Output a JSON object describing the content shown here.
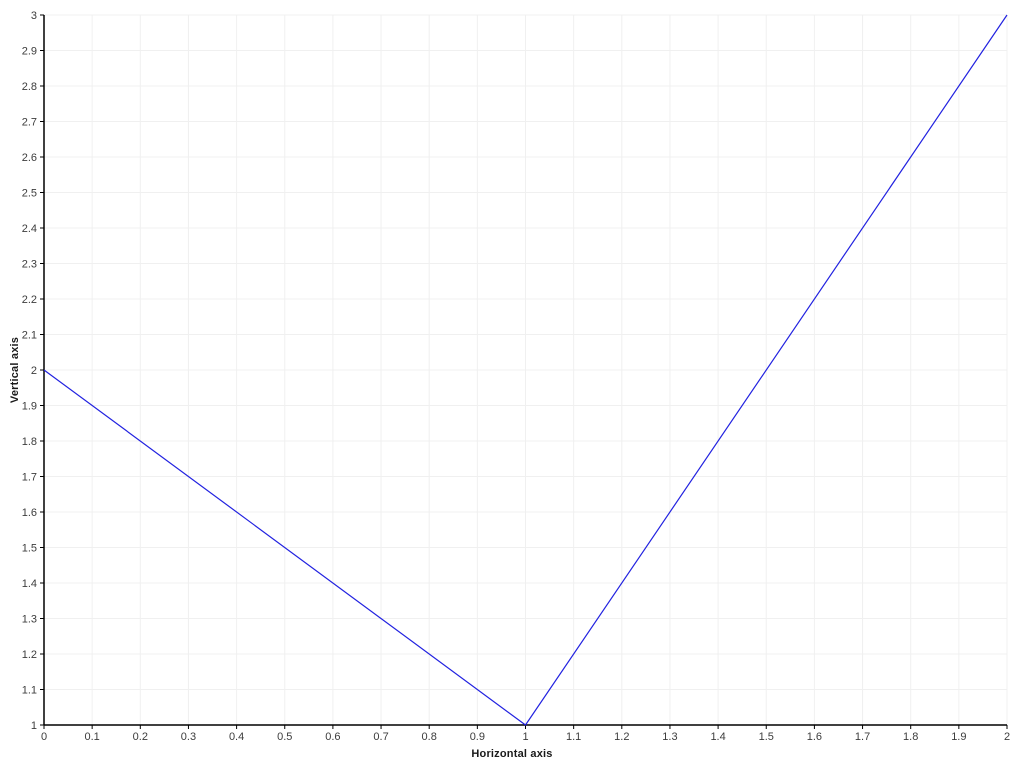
{
  "chart_data": {
    "type": "line",
    "title": "",
    "xlabel": "Horizontal axis",
    "ylabel": "Vertical axis",
    "series": [
      {
        "name": "series-1",
        "x": [
          0,
          1,
          2
        ],
        "y": [
          2,
          1,
          3
        ]
      }
    ],
    "xlim": [
      0,
      2
    ],
    "ylim": [
      1,
      3
    ],
    "xtick_step": 0.1,
    "ytick_step": 0.1,
    "xtick_labels": [
      "0",
      "0.1",
      "0.2",
      "0.3",
      "0.4",
      "0.5",
      "0.6",
      "0.7",
      "0.8",
      "0.9",
      "1",
      "1.1",
      "1.2",
      "1.3",
      "1.4",
      "1.5",
      "1.6",
      "1.7",
      "1.8",
      "1.9",
      "2"
    ],
    "ytick_labels": [
      "1",
      "1.1",
      "1.2",
      "1.3",
      "1.4",
      "1.5",
      "1.6",
      "1.7",
      "1.8",
      "1.9",
      "2",
      "2.1",
      "2.2",
      "2.3",
      "2.4",
      "2.5",
      "2.6",
      "2.7",
      "2.8",
      "2.9",
      "3"
    ],
    "grid": true,
    "legend": false,
    "colors": {
      "line": "#2222e0",
      "axis": "#000000",
      "grid": "#f0f0f0",
      "tick_label": "#3c3c3c",
      "background": "#ffffff"
    }
  }
}
